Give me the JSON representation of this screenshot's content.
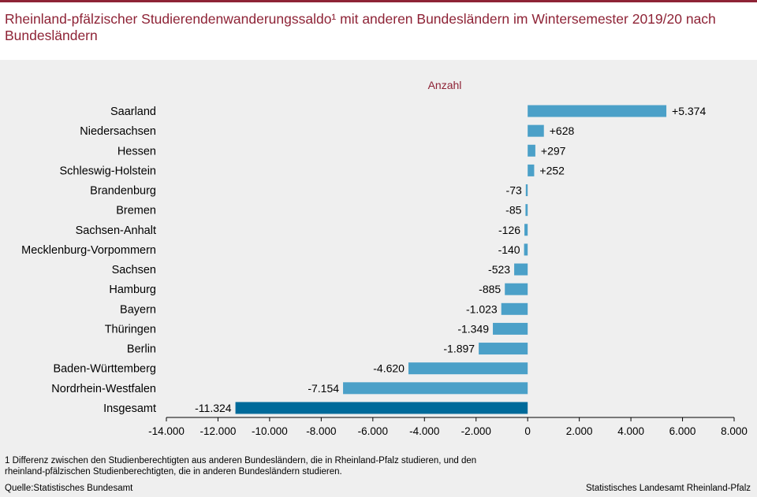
{
  "title": "Rheinland-pfälzischer Studierendenwanderungssaldo¹ mit anderen Bundesländern im Wintersemester 2019/20 nach Bundesländern",
  "footnote": "1 Differenz zwischen den Studienberechtigten aus anderen Bundesländern, die in Rheinland-Pfalz studieren, und den rheinland-pfälzischen Studienberechtigten, die in anderen Bundesländern studieren.",
  "source": "Quelle:Statistisches Bundesamt",
  "publisher": "Statistisches Landesamt Rheinland-Pfalz",
  "chart_data": {
    "type": "bar",
    "orientation": "horizontal",
    "unit_label": "Anzahl",
    "categories": [
      "Saarland",
      "Niedersachsen",
      "Hessen",
      "Schleswig-Holstein",
      "Brandenburg",
      "Bremen",
      "Sachsen-Anhalt",
      "Mecklenburg-Vorpommern",
      "Sachsen",
      "Hamburg",
      "Bayern",
      "Thüringen",
      "Berlin",
      "Baden-Württemberg",
      "Nordrhein-Westfalen",
      "Insgesamt"
    ],
    "values": [
      5374,
      628,
      297,
      252,
      -73,
      -85,
      -126,
      -140,
      -523,
      -885,
      -1023,
      -1349,
      -1897,
      -4620,
      -7154,
      -11324
    ],
    "value_labels": [
      "+5.374",
      "+628",
      "+297",
      "+252",
      "-73",
      "-85",
      "-126",
      "-140",
      "-523",
      "-885",
      "-1.023",
      "-1.349",
      "-1.897",
      "-4.620",
      "-7.154",
      "-11.324"
    ],
    "highlight": "Insgesamt",
    "xlim": [
      -14000,
      8000
    ],
    "xticks": [
      -14000,
      -12000,
      -10000,
      -8000,
      -6000,
      -4000,
      -2000,
      0,
      2000,
      4000,
      6000,
      8000
    ],
    "xtick_labels": [
      "-14.000",
      "-12.000",
      "-10.000",
      "-8.000",
      "-6.000",
      "-4.000",
      "-2.000",
      "0",
      "2.000",
      "4.000",
      "6.000",
      "8.000"
    ],
    "colors": {
      "bar": "#4ba0c8",
      "highlight": "#006a9a",
      "axis": "#000000",
      "unit": "#8e2336"
    }
  }
}
